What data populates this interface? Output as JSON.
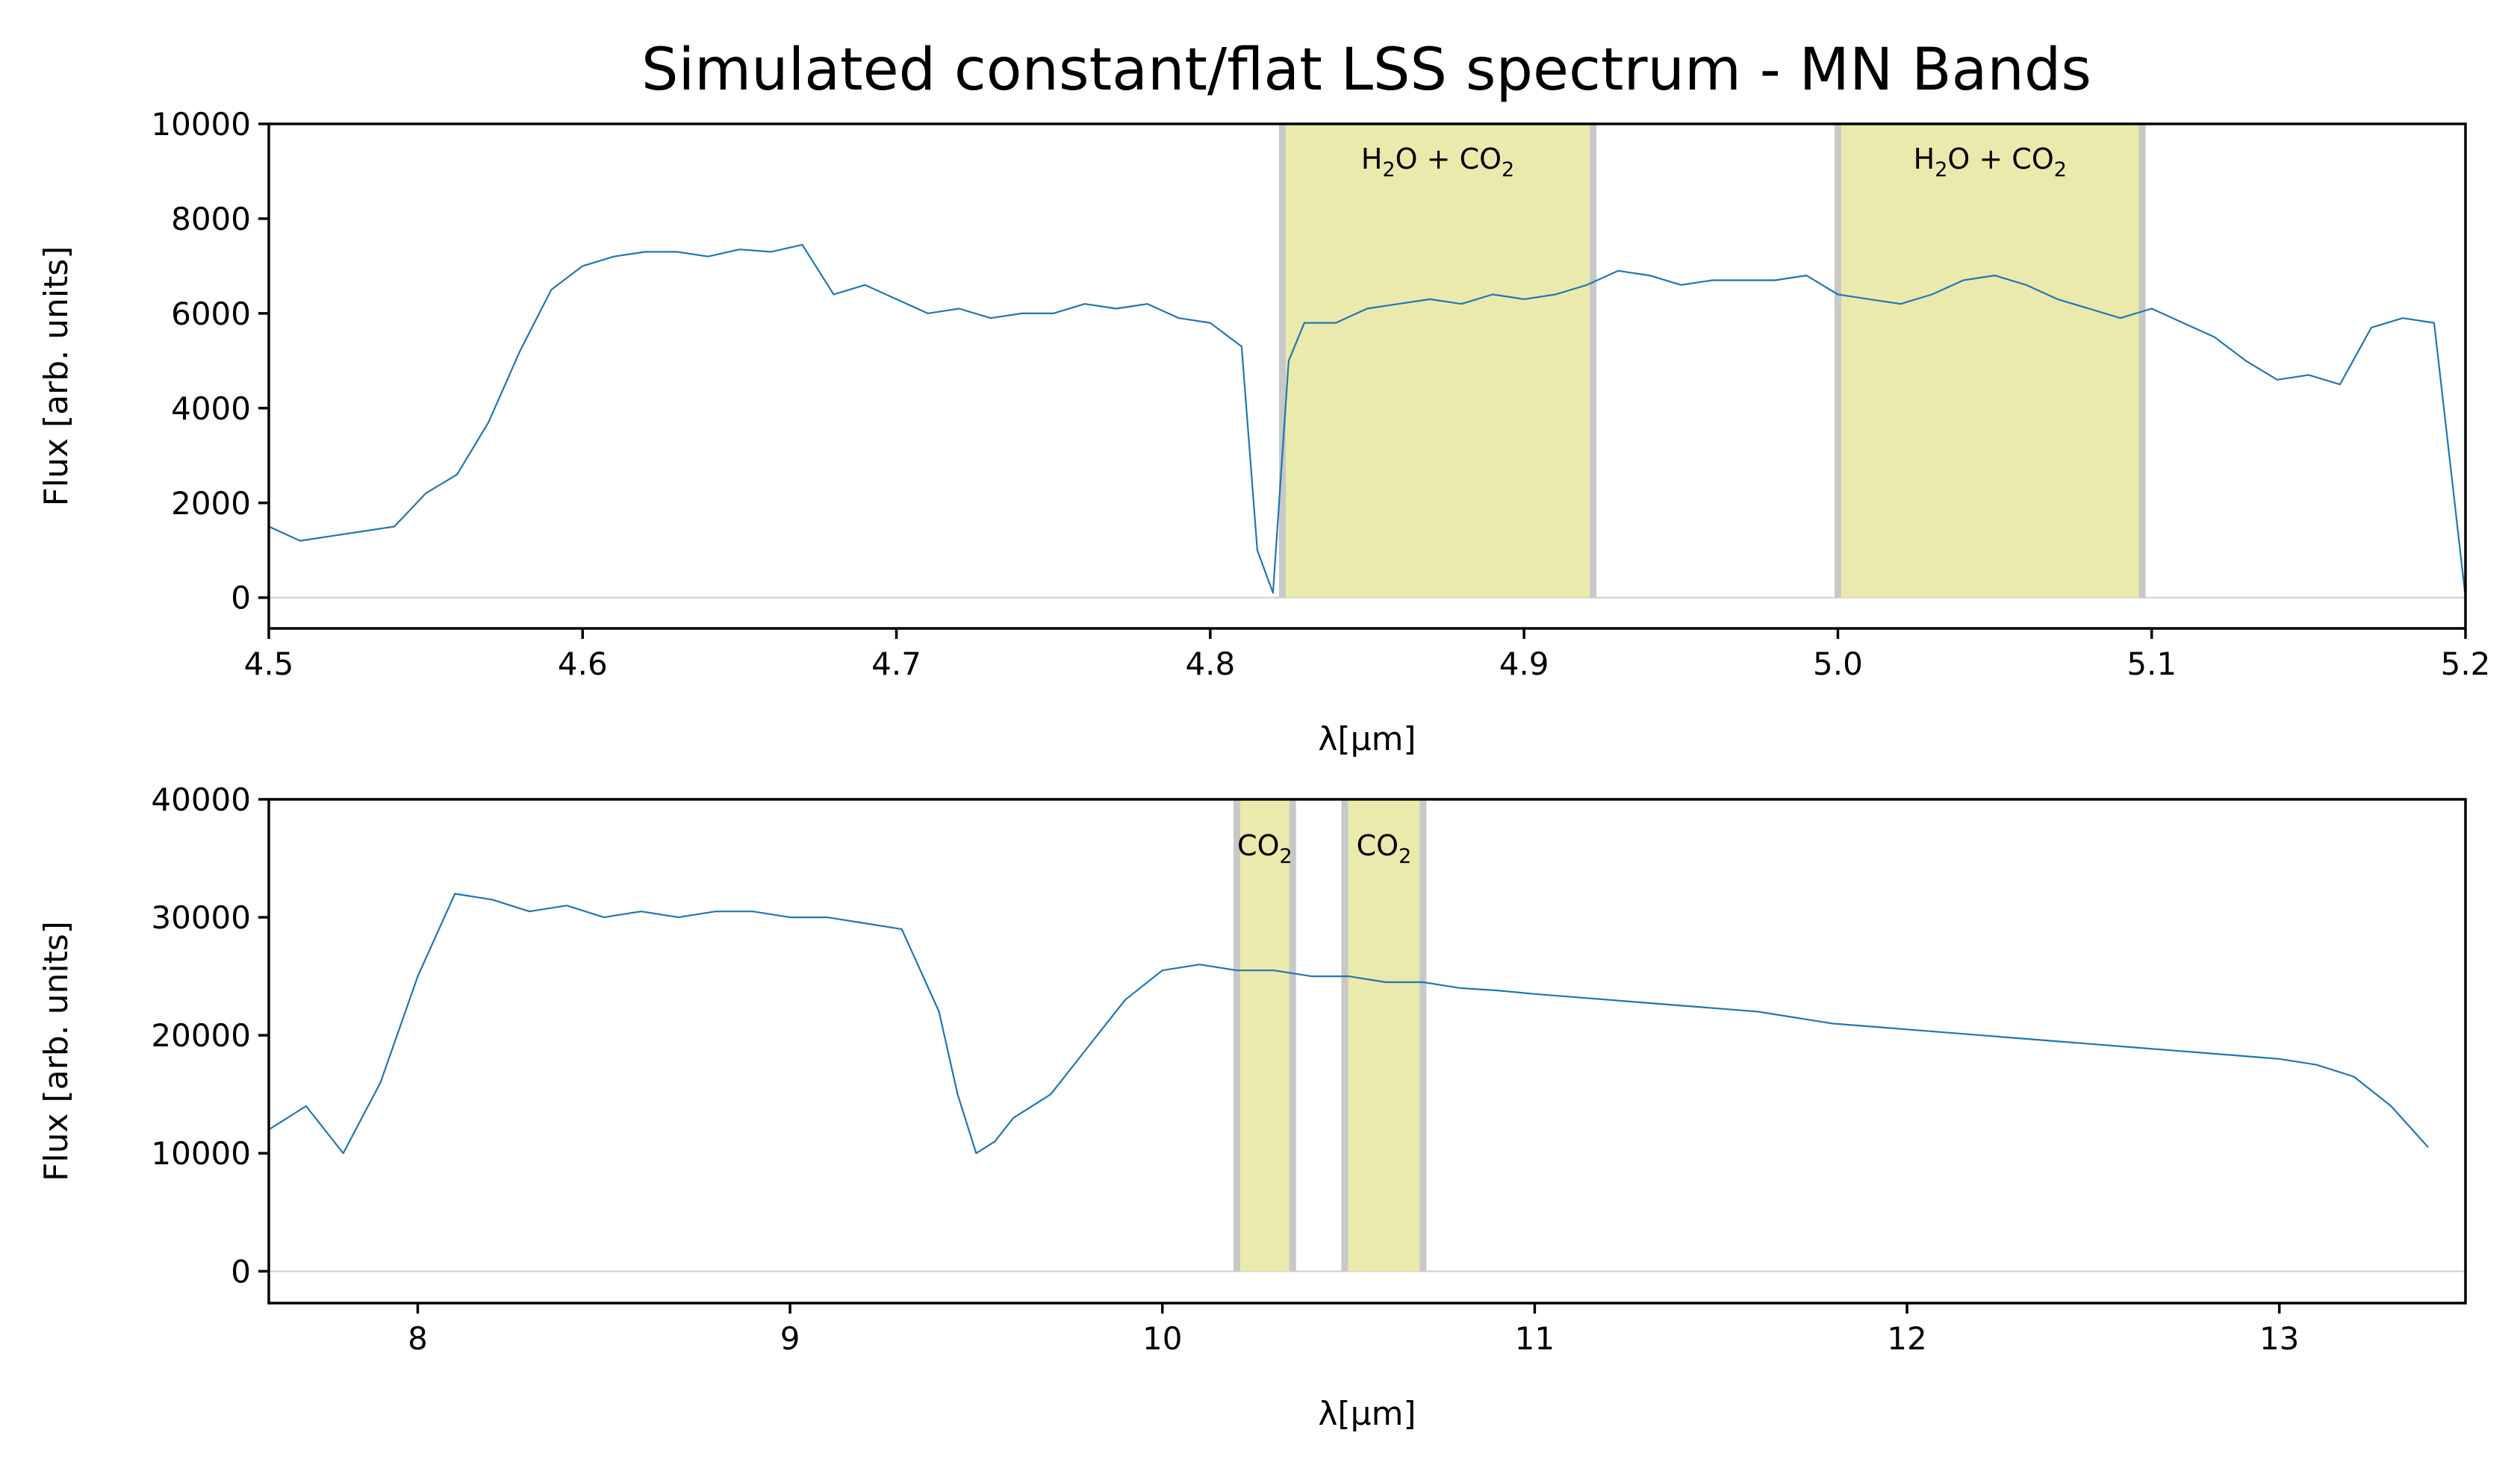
{
  "figure": {
    "title": "Simulated constant/flat LSS spectrum - MN Bands"
  },
  "chart_data": [
    {
      "type": "line",
      "xlabel": "λ[μm]",
      "ylabel": "Flux [arb. units]",
      "xlim": [
        4.5,
        5.2
      ],
      "ylim": [
        -650,
        10000
      ],
      "xticks": [
        4.5,
        4.6,
        4.7,
        4.8,
        4.9,
        5.0,
        5.1,
        5.2
      ],
      "xtick_labels": [
        "4.5",
        "4.6",
        "4.7",
        "4.8",
        "4.9",
        "5.0",
        "5.1",
        "5.2"
      ],
      "yticks": [
        0,
        2000,
        4000,
        6000,
        8000,
        10000
      ],
      "ytick_labels": [
        "0",
        "2000",
        "4000",
        "6000",
        "8000",
        "10000"
      ],
      "grid": false,
      "colors": {
        "series": "#1f77b4",
        "band": "#e6e69e",
        "band_edge": "#c8c8c8"
      },
      "bands": [
        {
          "x0": 4.823,
          "x1": 4.922,
          "label_main": "H",
          "label_mid": "O + CO",
          "sub": "2"
        },
        {
          "x0": 5.0,
          "x1": 5.097,
          "label_main": "H",
          "label_mid": "O + CO",
          "sub": "2"
        }
      ],
      "series": [
        {
          "x": [
            4.5,
            4.51,
            4.52,
            4.53,
            4.54,
            4.55,
            4.56,
            4.57,
            4.58,
            4.59,
            4.6,
            4.61,
            4.62,
            4.63,
            4.64,
            4.65,
            4.66,
            4.67,
            4.68,
            4.69,
            4.7,
            4.71,
            4.72,
            4.73,
            4.74,
            4.75,
            4.76,
            4.77,
            4.78,
            4.79,
            4.8,
            4.81,
            4.815,
            4.82,
            4.825,
            4.83,
            4.84,
            4.85,
            4.86,
            4.87,
            4.88,
            4.89,
            4.9,
            4.91,
            4.92,
            4.93,
            4.94,
            4.95,
            4.96,
            4.97,
            4.98,
            4.99,
            5.0,
            5.01,
            5.02,
            5.03,
            5.04,
            5.05,
            5.06,
            5.07,
            5.08,
            5.09,
            5.1,
            5.11,
            5.12,
            5.13,
            5.14,
            5.15,
            5.16,
            5.17,
            5.18,
            5.19,
            5.2
          ],
          "values": [
            1500,
            1200,
            1300,
            1400,
            1500,
            2200,
            2600,
            3700,
            5200,
            6500,
            7000,
            7200,
            7300,
            7300,
            7200,
            7350,
            7300,
            7450,
            6400,
            6600,
            6300,
            6000,
            6100,
            5900,
            6000,
            6000,
            6200,
            6100,
            6200,
            5900,
            5800,
            5300,
            1000,
            100,
            5000,
            5800,
            5800,
            6100,
            6200,
            6300,
            6200,
            6400,
            6300,
            6400,
            6600,
            6900,
            6800,
            6600,
            6700,
            6700,
            6700,
            6800,
            6400,
            6300,
            6200,
            6400,
            6700,
            6800,
            6600,
            6300,
            6100,
            5900,
            6100,
            5800,
            5500,
            5000,
            4600,
            4700,
            4500,
            5700,
            5900,
            5800,
            0
          ]
        }
      ]
    },
    {
      "type": "line",
      "xlabel": "λ[μm]",
      "ylabel": "Flux [arb. units]",
      "xlim": [
        7.6,
        13.5
      ],
      "ylim": [
        -2700,
        40000
      ],
      "xticks": [
        8,
        9,
        10,
        11,
        12,
        13
      ],
      "xtick_labels": [
        "8",
        "9",
        "10",
        "11",
        "12",
        "13"
      ],
      "yticks": [
        0,
        10000,
        20000,
        30000,
        40000
      ],
      "ytick_labels": [
        "0",
        "10000",
        "20000",
        "30000",
        "40000"
      ],
      "grid": false,
      "colors": {
        "series": "#1f77b4",
        "band": "#e6e69e",
        "band_edge": "#c8c8c8"
      },
      "bands": [
        {
          "x0": 10.2,
          "x1": 10.35,
          "label_main": "CO",
          "label_mid": "",
          "sub": "2"
        },
        {
          "x0": 10.49,
          "x1": 10.7,
          "label_main": "CO",
          "label_mid": "",
          "sub": "2"
        }
      ],
      "series": [
        {
          "x": [
            7.6,
            7.7,
            7.8,
            7.9,
            8.0,
            8.1,
            8.2,
            8.3,
            8.4,
            8.5,
            8.6,
            8.7,
            8.8,
            8.9,
            9.0,
            9.1,
            9.2,
            9.3,
            9.4,
            9.45,
            9.5,
            9.55,
            9.6,
            9.7,
            9.8,
            9.9,
            10.0,
            10.1,
            10.2,
            10.3,
            10.4,
            10.5,
            10.6,
            10.7,
            10.8,
            10.9,
            11.0,
            11.2,
            11.4,
            11.6,
            11.8,
            12.0,
            12.2,
            12.4,
            12.6,
            12.8,
            13.0,
            13.1,
            13.2,
            13.3,
            13.4
          ],
          "values": [
            12000,
            14000,
            10000,
            16000,
            25000,
            32000,
            31500,
            30500,
            31000,
            30000,
            30500,
            30000,
            30500,
            30500,
            30000,
            30000,
            29500,
            29000,
            22000,
            15000,
            10000,
            11000,
            13000,
            15000,
            19000,
            23000,
            25500,
            26000,
            25500,
            25500,
            25000,
            25000,
            24500,
            24500,
            24000,
            23800,
            23500,
            23000,
            22500,
            22000,
            21000,
            20500,
            20000,
            19500,
            19000,
            18500,
            18000,
            17500,
            16500,
            14000,
            10500
          ]
        }
      ]
    }
  ]
}
